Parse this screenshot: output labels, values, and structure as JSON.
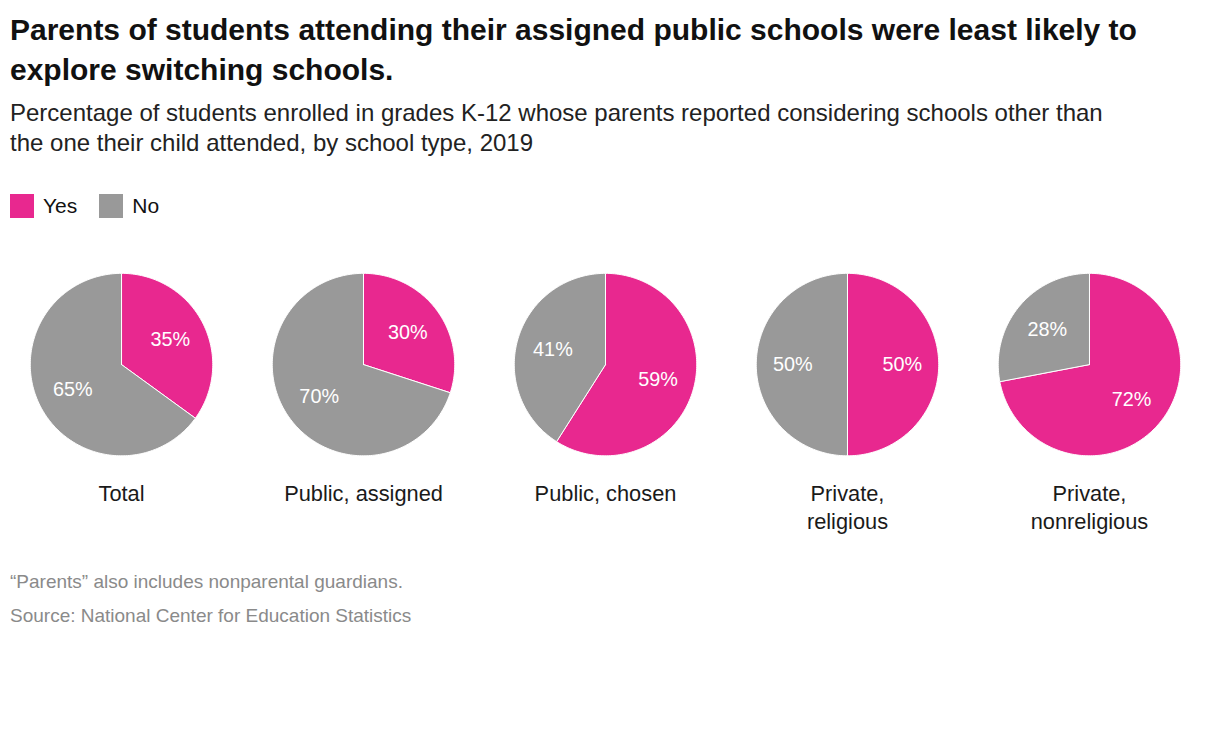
{
  "chart_data": {
    "type": "pie",
    "title": "Parents of students attending their assigned public schools were least likely to explore switching schools.",
    "subtitle": "Percentage of students enrolled in grades K-12 whose parents reported considering schools other than the one their child attended, by school type, 2019",
    "categories": [
      "Total",
      "Public, assigned",
      "Public, chosen",
      "Private, religious",
      "Private, nonreligious"
    ],
    "series": [
      {
        "name": "Yes",
        "color": "#e8288f",
        "values": [
          35,
          30,
          59,
          50,
          72
        ],
        "value_labels": [
          "35%",
          "30%",
          "59%",
          "50%",
          "72%"
        ]
      },
      {
        "name": "No",
        "color": "#999999",
        "values": [
          65,
          70,
          41,
          50,
          28
        ],
        "value_labels": [
          "65%",
          "70%",
          "41%",
          "50%",
          "28%"
        ]
      }
    ],
    "data_labels": true,
    "legend": "top-left",
    "notes": "“Parents” also includes nonparental guardians.",
    "source": "Source: National Center for Education Statistics"
  }
}
